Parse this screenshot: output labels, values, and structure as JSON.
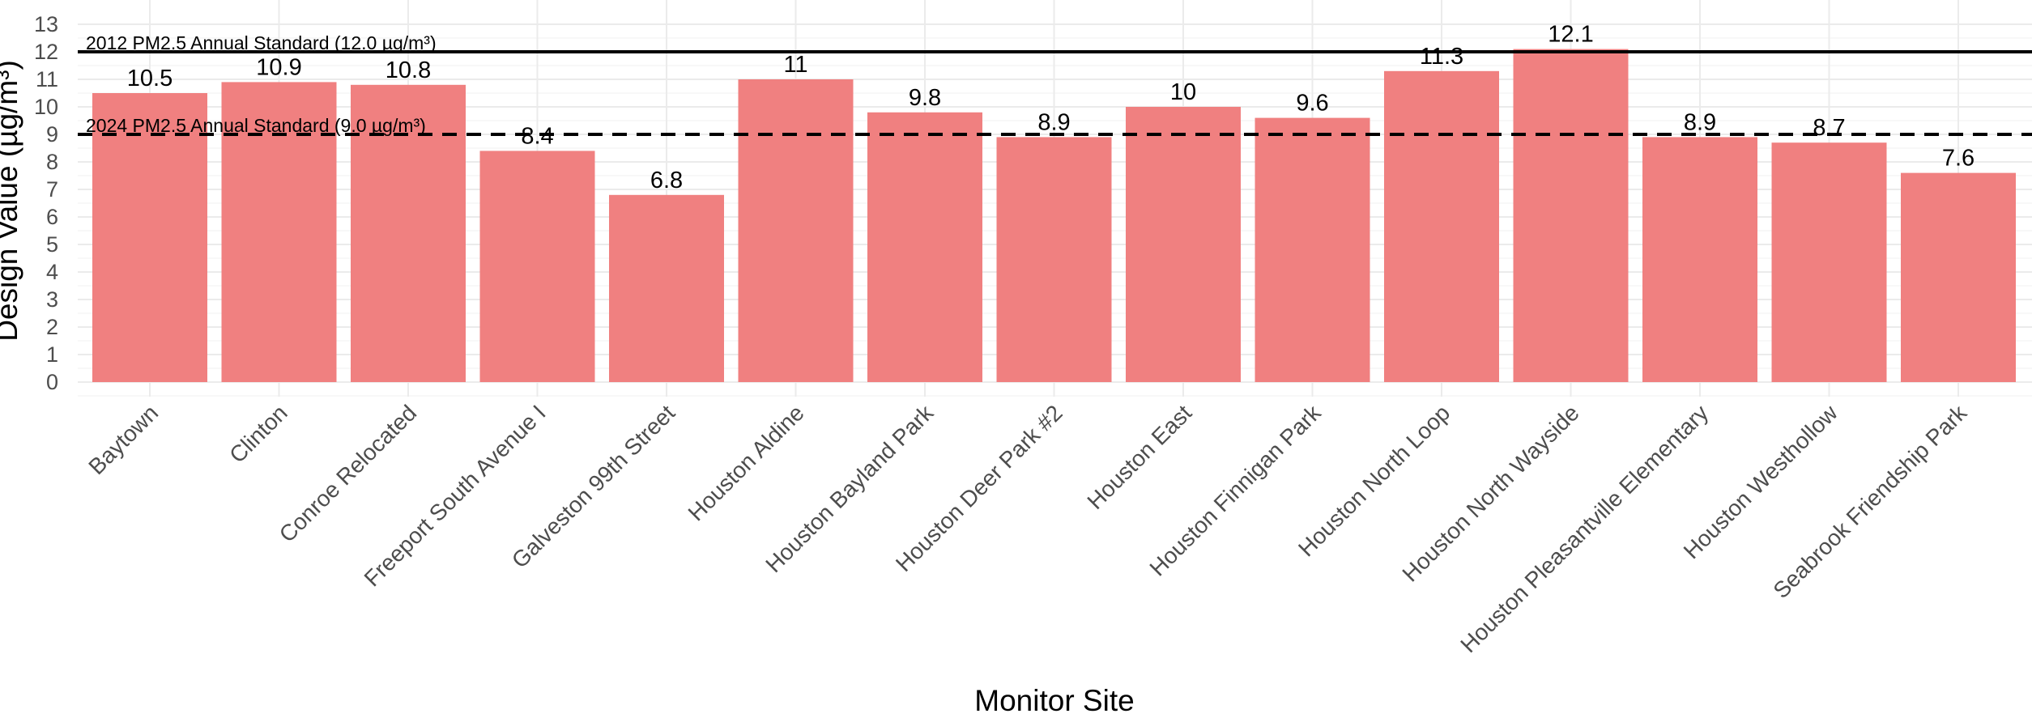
{
  "chart_data": {
    "type": "bar",
    "title": "",
    "xlabel": "Monitor Site",
    "ylabel": "Design Value (µg/m³)",
    "ylim": [
      0,
      13
    ],
    "y_ticks": [
      0,
      1,
      2,
      3,
      4,
      5,
      6,
      7,
      8,
      9,
      10,
      11,
      12,
      13
    ],
    "grid": true,
    "bar_color": "#F08080",
    "categories": [
      "Baytown",
      "Clinton",
      "Conroe Relocated",
      "Freeport South Avenue I",
      "Galveston 99th Street",
      "Houston Aldine",
      "Houston Bayland Park",
      "Houston Deer Park #2",
      "Houston East",
      "Houston Finnigan Park",
      "Houston North Loop",
      "Houston North Wayside",
      "Houston Pleasantville Elementary",
      "Houston Westhollow",
      "Seabrook Friendship Park"
    ],
    "values": [
      10.5,
      10.9,
      10.8,
      8.4,
      6.8,
      11,
      9.8,
      8.9,
      10,
      9.6,
      11.3,
      12.1,
      8.9,
      8.7,
      7.6
    ],
    "value_labels": [
      "10.5",
      "10.9",
      "10.8",
      "8.4",
      "6.8",
      "11",
      "9.8",
      "8.9",
      "10",
      "9.6",
      "11.3",
      "12.1",
      "8.9",
      "8.7",
      "7.6"
    ],
    "reference_lines": [
      {
        "value": 12,
        "style": "solid",
        "label": "2012 PM2.5 Annual Standard (12.0 µg/m³)"
      },
      {
        "value": 9,
        "style": "dashed",
        "label": "2024 PM2.5 Annual Standard (9.0 µg/m³)"
      }
    ]
  }
}
